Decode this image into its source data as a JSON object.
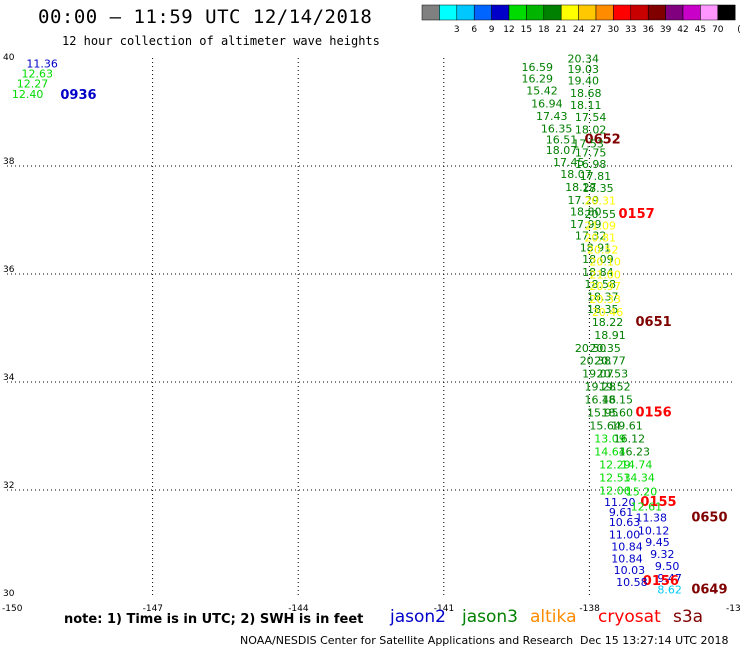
{
  "header": {
    "title": "00:00 – 11:59 UTC 12/14/2018",
    "subtitle": "12 hour collection of altimeter wave heights"
  },
  "legend": {
    "bins": [
      {
        "label": "",
        "color": "#808080"
      },
      {
        "label": "3",
        "color": "#00ffff"
      },
      {
        "label": "6",
        "color": "#00c8ff"
      },
      {
        "label": "9",
        "color": "#0064ff"
      },
      {
        "label": "12",
        "color": "#0000c8"
      },
      {
        "label": "15",
        "color": "#00dc00"
      },
      {
        "label": "18",
        "color": "#00b400"
      },
      {
        "label": "21",
        "color": "#008000"
      },
      {
        "label": "24",
        "color": "#ffff00"
      },
      {
        "label": "27",
        "color": "#ffc800"
      },
      {
        "label": "30",
        "color": "#ff8c00"
      },
      {
        "label": "33",
        "color": "#ff0000"
      },
      {
        "label": "36",
        "color": "#c80000"
      },
      {
        "label": "39",
        "color": "#800000"
      },
      {
        "label": "42",
        "color": "#800080"
      },
      {
        "label": "45",
        "color": "#c800c8"
      },
      {
        "label": "70",
        "color": "#ff96ff"
      },
      {
        "label": "",
        "color": "#000000"
      }
    ],
    "unit": "(ft)"
  },
  "axes": {
    "lon_ticks": [
      "-150",
      "-147",
      "-144",
      "-141",
      "-138",
      "-13"
    ],
    "lat_ticks": [
      "30",
      "32",
      "34",
      "36",
      "38",
      "40"
    ]
  },
  "colors": {
    "jason2": "#0000c8",
    "jason3": "#008000",
    "altika": "#ff8c00",
    "cryosat": "#ff0000",
    "s3a": "#800000",
    "lightgreen": "#00dc00",
    "mediumgreen": "#00b400",
    "yellow": "#ffff00",
    "lightblue": "#00c8ff",
    "grid": "#000000"
  },
  "chart_data": {
    "type": "scatter",
    "x_range": [
      -150,
      -135
    ],
    "y_range": [
      30,
      40
    ],
    "labels": [
      {
        "text": "11.36",
        "lon": -149.6,
        "lat": 39.82,
        "color": "jason2"
      },
      {
        "text": "12.63",
        "lon": -149.7,
        "lat": 39.64,
        "color": "lightgreen"
      },
      {
        "text": "12.27",
        "lon": -149.8,
        "lat": 39.45,
        "color": "lightgreen"
      },
      {
        "text": "12.40",
        "lon": -149.9,
        "lat": 39.26,
        "color": "lightgreen"
      },
      {
        "text": "0936",
        "lon": -148.9,
        "lat": 39.24,
        "color": "jason2",
        "time": true
      },
      {
        "text": "20.34",
        "lon": -138.45,
        "lat": 39.92,
        "color": "jason3"
      },
      {
        "text": "16.59",
        "lon": -139.4,
        "lat": 39.76,
        "color": "jason3"
      },
      {
        "text": "19.03",
        "lon": -138.45,
        "lat": 39.72,
        "color": "jason3"
      },
      {
        "text": "16.29",
        "lon": -139.4,
        "lat": 39.55,
        "color": "jason3"
      },
      {
        "text": "19.40",
        "lon": -138.45,
        "lat": 39.51,
        "color": "jason3"
      },
      {
        "text": "15.42",
        "lon": -139.3,
        "lat": 39.32,
        "color": "jason3"
      },
      {
        "text": "18.68",
        "lon": -138.4,
        "lat": 39.28,
        "color": "jason3"
      },
      {
        "text": "16.94",
        "lon": -139.2,
        "lat": 39.08,
        "color": "jason3"
      },
      {
        "text": "18.11",
        "lon": -138.4,
        "lat": 39.06,
        "color": "jason3"
      },
      {
        "text": "17.43",
        "lon": -139.1,
        "lat": 38.85,
        "color": "jason3"
      },
      {
        "text": "17.54",
        "lon": -138.3,
        "lat": 38.83,
        "color": "jason3"
      },
      {
        "text": "16.35",
        "lon": -139.0,
        "lat": 38.62,
        "color": "jason3"
      },
      {
        "text": "18.02",
        "lon": -138.3,
        "lat": 38.6,
        "color": "jason3"
      },
      {
        "text": "16.51",
        "lon": -138.9,
        "lat": 38.42,
        "color": "jason3"
      },
      {
        "text": "0652",
        "lon": -138.1,
        "lat": 38.42,
        "color": "s3a",
        "time": true
      },
      {
        "text": "17.53",
        "lon": -138.35,
        "lat": 38.34,
        "color": "jason3"
      },
      {
        "text": "18.07",
        "lon": -138.9,
        "lat": 38.22,
        "color": "jason3"
      },
      {
        "text": "17.75",
        "lon": -138.3,
        "lat": 38.18,
        "color": "jason3"
      },
      {
        "text": "17.45",
        "lon": -138.75,
        "lat": 38.0,
        "color": "jason3"
      },
      {
        "text": "16.98",
        "lon": -138.3,
        "lat": 37.96,
        "color": "jason3"
      },
      {
        "text": "18.07",
        "lon": -138.6,
        "lat": 37.78,
        "color": "jason3"
      },
      {
        "text": "17.81",
        "lon": -138.2,
        "lat": 37.74,
        "color": "jason3"
      },
      {
        "text": "18.27",
        "lon": -138.5,
        "lat": 37.54,
        "color": "jason3"
      },
      {
        "text": "18.35",
        "lon": -138.15,
        "lat": 37.52,
        "color": "jason3"
      },
      {
        "text": "17.29",
        "lon": -138.45,
        "lat": 37.3,
        "color": "jason3"
      },
      {
        "text": "20.31",
        "lon": -138.1,
        "lat": 37.29,
        "color": "yellow"
      },
      {
        "text": "18.80",
        "lon": -138.4,
        "lat": 37.08,
        "color": "jason3"
      },
      {
        "text": "20.55",
        "lon": -138.1,
        "lat": 37.04,
        "color": "jason3"
      },
      {
        "text": "0157",
        "lon": -137.4,
        "lat": 37.04,
        "color": "cryosat",
        "time": true
      },
      {
        "text": "17.99",
        "lon": -138.4,
        "lat": 36.85,
        "color": "jason3"
      },
      {
        "text": "21.09",
        "lon": -138.1,
        "lat": 36.82,
        "color": "yellow"
      },
      {
        "text": "17.32",
        "lon": -138.3,
        "lat": 36.64,
        "color": "jason3"
      },
      {
        "text": "20.81",
        "lon": -138.1,
        "lat": 36.6,
        "color": "yellow"
      },
      {
        "text": "18.91",
        "lon": -138.2,
        "lat": 36.42,
        "color": "jason3"
      },
      {
        "text": "20.52",
        "lon": -138.05,
        "lat": 36.38,
        "color": "yellow"
      },
      {
        "text": "18.09",
        "lon": -138.15,
        "lat": 36.2,
        "color": "jason3"
      },
      {
        "text": "20.10",
        "lon": -138.0,
        "lat": 36.16,
        "color": "yellow"
      },
      {
        "text": "18.84",
        "lon": -138.15,
        "lat": 35.96,
        "color": "jason3"
      },
      {
        "text": "21.00",
        "lon": -138.0,
        "lat": 35.92,
        "color": "yellow"
      },
      {
        "text": "18.58",
        "lon": -138.1,
        "lat": 35.74,
        "color": "jason3"
      },
      {
        "text": "20.97",
        "lon": -138.0,
        "lat": 35.7,
        "color": "yellow"
      },
      {
        "text": "18.37",
        "lon": -138.05,
        "lat": 35.51,
        "color": "jason3"
      },
      {
        "text": "20.33",
        "lon": -138.0,
        "lat": 35.46,
        "color": "yellow"
      },
      {
        "text": "18.35",
        "lon": -138.05,
        "lat": 35.28,
        "color": "jason3"
      },
      {
        "text": "20.46",
        "lon": -137.95,
        "lat": 35.22,
        "color": "yellow"
      },
      {
        "text": "18.22",
        "lon": -137.95,
        "lat": 35.04,
        "color": "jason3"
      },
      {
        "text": "0651",
        "lon": -137.05,
        "lat": 35.04,
        "color": "s3a",
        "time": true
      },
      {
        "text": "18.91",
        "lon": -137.9,
        "lat": 34.8,
        "color": "jason3"
      },
      {
        "text": "20.50",
        "lon": -138.3,
        "lat": 34.56,
        "color": "jason3"
      },
      {
        "text": "20.35",
        "lon": -138.0,
        "lat": 34.56,
        "color": "jason3"
      },
      {
        "text": "20.38",
        "lon": -138.2,
        "lat": 34.32,
        "color": "jason3"
      },
      {
        "text": "20.77",
        "lon": -137.9,
        "lat": 34.32,
        "color": "jason3"
      },
      {
        "text": "19.07",
        "lon": -138.15,
        "lat": 34.08,
        "color": "jason3"
      },
      {
        "text": "20.53",
        "lon": -137.85,
        "lat": 34.08,
        "color": "jason3"
      },
      {
        "text": "19.28",
        "lon": -138.1,
        "lat": 33.84,
        "color": "jason3"
      },
      {
        "text": "19.52",
        "lon": -137.8,
        "lat": 33.84,
        "color": "jason3"
      },
      {
        "text": "16.46",
        "lon": -138.1,
        "lat": 33.6,
        "color": "jason3"
      },
      {
        "text": "18.15",
        "lon": -137.75,
        "lat": 33.6,
        "color": "jason3"
      },
      {
        "text": "15.95",
        "lon": -138.05,
        "lat": 33.36,
        "color": "jason3"
      },
      {
        "text": "18.60",
        "lon": -137.75,
        "lat": 33.36,
        "color": "jason3"
      },
      {
        "text": "0156",
        "lon": -137.05,
        "lat": 33.36,
        "color": "cryosat",
        "time": true
      },
      {
        "text": "15.64",
        "lon": -138.0,
        "lat": 33.12,
        "color": "jason3"
      },
      {
        "text": "19.61",
        "lon": -137.55,
        "lat": 33.12,
        "color": "jason3"
      },
      {
        "text": "13.09",
        "lon": -137.9,
        "lat": 32.88,
        "color": "lightgreen"
      },
      {
        "text": "16.12",
        "lon": -137.5,
        "lat": 32.88,
        "color": "jason3"
      },
      {
        "text": "14.64",
        "lon": -137.9,
        "lat": 32.64,
        "color": "lightgreen"
      },
      {
        "text": "16.23",
        "lon": -137.4,
        "lat": 32.64,
        "color": "jason3"
      },
      {
        "text": "12.29",
        "lon": -137.8,
        "lat": 32.4,
        "color": "lightgreen"
      },
      {
        "text": "14.74",
        "lon": -137.35,
        "lat": 32.4,
        "color": "lightgreen"
      },
      {
        "text": "12.53",
        "lon": -137.8,
        "lat": 32.16,
        "color": "lightgreen"
      },
      {
        "text": "14.34",
        "lon": -137.3,
        "lat": 32.16,
        "color": "lightgreen"
      },
      {
        "text": "12.06",
        "lon": -137.8,
        "lat": 31.92,
        "color": "lightgreen"
      },
      {
        "text": "15.20",
        "lon": -137.25,
        "lat": 31.9,
        "color": "lightgreen"
      },
      {
        "text": "11.20",
        "lon": -137.7,
        "lat": 31.7,
        "color": "jason2"
      },
      {
        "text": "0155",
        "lon": -136.95,
        "lat": 31.7,
        "color": "cryosat",
        "time": true
      },
      {
        "text": "12.61",
        "lon": -137.15,
        "lat": 31.62,
        "color": "lightgreen"
      },
      {
        "text": "9.61",
        "lon": -137.6,
        "lat": 31.52,
        "color": "jason2"
      },
      {
        "text": "11.38",
        "lon": -137.05,
        "lat": 31.42,
        "color": "jason2"
      },
      {
        "text": "0650",
        "lon": -135.9,
        "lat": 31.42,
        "color": "s3a",
        "time": true
      },
      {
        "text": "10.63",
        "lon": -137.6,
        "lat": 31.33,
        "color": "jason2"
      },
      {
        "text": "10.12",
        "lon": -137.0,
        "lat": 31.18,
        "color": "jason2"
      },
      {
        "text": "11.00",
        "lon": -137.6,
        "lat": 31.1,
        "color": "jason2"
      },
      {
        "text": "9.45",
        "lon": -136.85,
        "lat": 30.96,
        "color": "jason2"
      },
      {
        "text": "10.84",
        "lon": -137.55,
        "lat": 30.88,
        "color": "jason2"
      },
      {
        "text": "9.32",
        "lon": -136.75,
        "lat": 30.74,
        "color": "jason2"
      },
      {
        "text": "10.84",
        "lon": -137.55,
        "lat": 30.66,
        "color": "jason2"
      },
      {
        "text": "9.50",
        "lon": -136.65,
        "lat": 30.52,
        "color": "jason2"
      },
      {
        "text": "10.03",
        "lon": -137.5,
        "lat": 30.44,
        "color": "jason2"
      },
      {
        "text": "9.47",
        "lon": -136.6,
        "lat": 30.3,
        "color": "jason2"
      },
      {
        "text": "0156",
        "lon": -136.9,
        "lat": 30.24,
        "color": "cryosat",
        "time": true
      },
      {
        "text": "10.58",
        "lon": -137.45,
        "lat": 30.22,
        "color": "jason2"
      },
      {
        "text": "8.62",
        "lon": -136.6,
        "lat": 30.08,
        "color": "lightblue"
      },
      {
        "text": "0649",
        "lon": -135.9,
        "lat": 30.08,
        "color": "s3a",
        "time": true
      }
    ]
  },
  "footer": {
    "note": "note: 1) Time is in UTC; 2) SWH is in feet",
    "missions": [
      {
        "name": "jason2",
        "color": "#0000c8"
      },
      {
        "name": "jason3",
        "color": "#008000"
      },
      {
        "name": "altika",
        "color": "#ff8c00"
      },
      {
        "name": "cryosat",
        "color": "#ff0000"
      },
      {
        "name": "s3a",
        "color": "#800000"
      }
    ],
    "credit": "NOAA/NESDIS Center for Satellite Applications and Research",
    "timestamp": "Dec 15 13:27:14 UTC 2018"
  }
}
